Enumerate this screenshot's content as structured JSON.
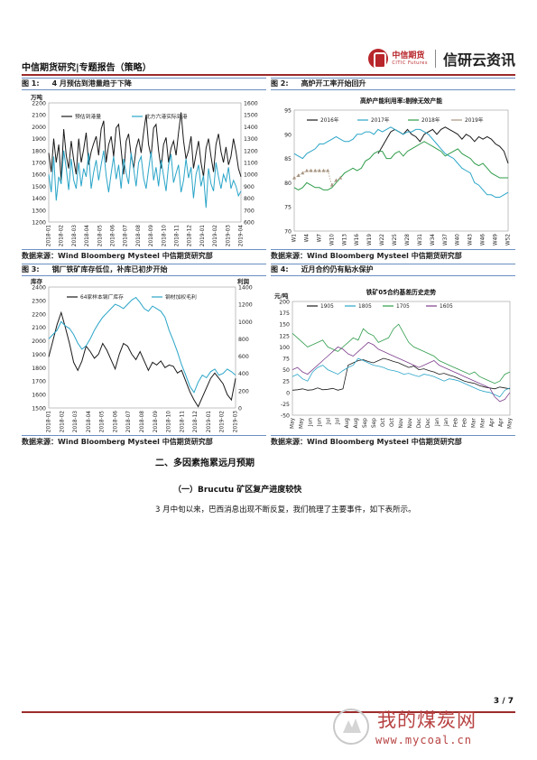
{
  "header": {
    "title": "中信期货研究|专题报告（策略）",
    "logo_cn": "中信期货",
    "logo_en": "CITIC Futures",
    "brand": "信研云资讯"
  },
  "figures": [
    {
      "num": "图 1:",
      "title": "4 月预估到港量趋于下降",
      "source": "数据来源：Wind Bloomberg Mysteel 中信期货研究部",
      "chart_data": {
        "type": "line",
        "ylabel_left": "万吨",
        "ylim_left": [
          1200,
          2200
        ],
        "yticks_left": [
          "2200",
          "2100",
          "2000",
          "1900",
          "1800",
          "1700",
          "1600",
          "1500",
          "1400",
          "1300",
          "1200"
        ],
        "ylim_right": [
          600,
          1600
        ],
        "yticks_right": [
          "1600",
          "1500",
          "1400",
          "1300",
          "1200",
          "1100",
          "1000",
          "900",
          "800",
          "700",
          "600"
        ],
        "xticks": [
          "2018-01",
          "2018-02",
          "2018-03",
          "2018-04",
          "2018-05",
          "2018-06",
          "2018-07",
          "2018-08",
          "2018-09",
          "2018-10",
          "2018-11",
          "2018-12",
          "2019-01",
          "2019-02",
          "2019-03",
          "2019-04"
        ],
        "series": [
          {
            "name": "预估到港量",
            "axis": "left",
            "color": "#1a1a1a",
            "values": [
              1780,
              1620,
              1900,
              1700,
              1850,
              1550,
              1980,
              1760,
              1650,
              1880,
              1720,
              1600,
              1900,
              1700,
              1810,
              1950,
              1680,
              1790,
              1860,
              1920,
              1760,
              1980,
              2050,
              1700,
              1850,
              1920,
              1750,
              1990,
              2020,
              1810,
              1600,
              1880,
              1940,
              1760,
              1650,
              1820,
              1900,
              1780,
              1950,
              2100,
              1850,
              1750,
              1990,
              2020,
              1800,
              1650,
              1850,
              1910,
              1700,
              1820,
              1880,
              1760,
              1950,
              2120,
              1880,
              1730,
              1800,
              1920,
              1650,
              1770,
              1880,
              1700,
              1580,
              1820,
              1900,
              1750,
              1620,
              1850,
              1940,
              1790,
              1700,
              1830,
              1680,
              1750,
              1900,
              1790,
              1650,
              1580
            ]
          },
          {
            "name": "北方六港实际到港",
            "axis": "right",
            "color": "#2aa5c8",
            "values": [
              1000,
              850,
              1150,
              780,
              980,
              920,
              1200,
              1050,
              870,
              1130,
              950,
              880,
              1100,
              900,
              1050,
              980,
              1180,
              880,
              1020,
              1120,
              950,
              1080,
              1200,
              990,
              850,
              1010,
              1150,
              960,
              1080,
              880,
              1130,
              1010,
              920,
              1180,
              1050,
              900,
              1100,
              1150,
              970,
              880,
              1040,
              1190,
              950,
              1060,
              900,
              1120,
              990,
              860,
              1080,
              1170,
              930,
              1010,
              1080,
              850,
              950,
              1130,
              970,
              1060,
              800,
              1000,
              1080,
              900,
              990,
              720,
              1050,
              920,
              860,
              1100,
              980,
              880,
              1000,
              940,
              1060,
              880,
              950,
              900,
              820,
              860
            ]
          }
        ]
      }
    },
    {
      "num": "图 2:",
      "title": "高炉开工率开始回升",
      "source": "数据来源：Wind Bloomberg Mysteel 中信期货研究部",
      "chart_data": {
        "type": "line",
        "title": "高炉产能利用率:剔除无效产能",
        "ylim": [
          70,
          95
        ],
        "yticks": [
          "95",
          "90",
          "85",
          "80",
          "75",
          "70"
        ],
        "xticks": [
          "W1",
          "W4",
          "W7",
          "W10",
          "W13",
          "W16",
          "W19",
          "W22",
          "W25",
          "W28",
          "W31",
          "W34",
          "W37",
          "W40",
          "W43",
          "W46",
          "W49",
          "W52"
        ],
        "series": [
          {
            "name": "2016年",
            "color": "#1a1a1a",
            "values": [
              null,
              null,
              null,
              null,
              null,
              null,
              null,
              null,
              null,
              null,
              null,
              null,
              null,
              null,
              null,
              null,
              null,
              null,
              null,
              null,
              86,
              87.5,
              89,
              90.5,
              91,
              90.5,
              90,
              91,
              90,
              89.5,
              88.5,
              90,
              90.5,
              91,
              90,
              91,
              91.5,
              91,
              90.5,
              90,
              89,
              90,
              89.5,
              88.5,
              89.5,
              89,
              89.5,
              89,
              88,
              87.5,
              86.5,
              84
            ]
          },
          {
            "name": "2017年",
            "color": "#2aa5c8",
            "values": [
              86,
              85.5,
              85,
              86,
              86.5,
              87,
              88,
              88,
              88.5,
              89,
              89.5,
              89,
              88.5,
              88.5,
              89,
              90,
              90,
              90.5,
              90.5,
              90,
              91,
              90.5,
              91,
              91.5,
              91,
              90.5,
              90,
              90.5,
              90.5,
              91,
              91,
              90.5,
              90,
              89,
              88,
              87,
              86,
              85.5,
              85,
              84,
              83,
              82.5,
              82,
              80,
              79.5,
              78.5,
              77.5,
              77.5,
              77,
              77,
              77.5,
              78
            ]
          },
          {
            "name": "2018年",
            "color": "#2e9c4a",
            "values": [
              79,
              78.5,
              79,
              80,
              79.5,
              79,
              79,
              78.5,
              78.5,
              79,
              80,
              81,
              82,
              82.5,
              83,
              82.5,
              83,
              84.5,
              85,
              86,
              86.5,
              86.5,
              85,
              85,
              86,
              86.5,
              85.5,
              86.5,
              87,
              87.5,
              88,
              88.5,
              88,
              87.5,
              87,
              86.5,
              85.5,
              86,
              86.5,
              87,
              86,
              85.5,
              85,
              84,
              83.5,
              84,
              83,
              82,
              81.5,
              81,
              81,
              81
            ]
          },
          {
            "name": "2019年",
            "color": "#a89580",
            "values": [
              81,
              81.5,
              82,
              82.5,
              82.5,
              82.5,
              82.5,
              82.5,
              82.5,
              79.5,
              80.5,
              81,
              null,
              null,
              null,
              null,
              null,
              null,
              null,
              null,
              null,
              null,
              null,
              null,
              null,
              null,
              null,
              null,
              null,
              null,
              null,
              null,
              null,
              null,
              null,
              null,
              null,
              null,
              null,
              null,
              null,
              null,
              null,
              null,
              null,
              null,
              null,
              null,
              null,
              null,
              null,
              null
            ]
          }
        ]
      }
    },
    {
      "num": "图 3:",
      "title": "钢厂铁矿库存低位，补库已初步开始",
      "source": "数据来源：Wind Bloomberg Mysteel 中信期货研究部",
      "chart_data": {
        "type": "line",
        "ylabel_left": "库存",
        "ylabel_right": "利润",
        "ylim_left": [
          1500,
          2400
        ],
        "yticks_left": [
          "2400",
          "2300",
          "2200",
          "2100",
          "2000",
          "1900",
          "1800",
          "1700",
          "1600",
          "1500"
        ],
        "ylim_right": [
          0,
          1400
        ],
        "yticks_right": [
          "1400",
          "1200",
          "1000",
          "800",
          "600",
          "400",
          "200",
          "0"
        ],
        "xticks": [
          "2018-01",
          "2018-02",
          "2018-03",
          "2018-04",
          "2018-05",
          "2018-06",
          "2018-07",
          "2018-08",
          "2018-09",
          "2018-10",
          "2018-11",
          "2018-12",
          "2019-01",
          "2019-02",
          "2019-03"
        ],
        "series": [
          {
            "name": "64家样本钢厂库存",
            "axis": "left",
            "color": "#1a1a1a",
            "values": [
              1880,
              2000,
              2120,
              2210,
              2100,
              1980,
              1840,
              1780,
              1850,
              1960,
              1920,
              1870,
              1900,
              1980,
              1930,
              1860,
              1790,
              1900,
              1980,
              1960,
              1900,
              1860,
              1920,
              1850,
              1780,
              1840,
              1820,
              1850,
              1800,
              1820,
              1810,
              1760,
              1780,
              1700,
              1620,
              1560,
              1510,
              1580,
              1650,
              1720,
              1760,
              1720,
              1680,
              1600,
              1560,
              1720
            ]
          },
          {
            "name": "钢材加权毛利",
            "axis": "right",
            "color": "#2aa5c8",
            "values": [
              800,
              850,
              900,
              1000,
              950,
              920,
              850,
              750,
              680,
              720,
              800,
              900,
              980,
              1050,
              1100,
              1150,
              1200,
              1180,
              1150,
              1200,
              1250,
              1280,
              1220,
              1150,
              1120,
              1180,
              1150,
              1120,
              1050,
              900,
              780,
              650,
              500,
              380,
              250,
              180,
              300,
              380,
              350,
              420,
              450,
              380,
              400,
              450,
              420,
              380
            ]
          }
        ]
      }
    },
    {
      "num": "图 4:",
      "title": "近月合约仍有贴水保护",
      "source": "数据来源：Wind Bloomberg Mysteel 中信期货研究部",
      "chart_data": {
        "type": "line",
        "title": "铁矿05合约基差历史走势",
        "ylabel": "元/吨",
        "ylim": [
          -50,
          200
        ],
        "yticks": [
          "200",
          "175",
          "150",
          "125",
          "100",
          "75",
          "50",
          "25",
          "0",
          "-25",
          "-50"
        ],
        "xticks": [
          "May",
          "May",
          "Jun",
          "Jun",
          "Jul",
          "Jul",
          "Aug",
          "Aug",
          "Sep",
          "Sep",
          "Oct",
          "Oct",
          "Nov",
          "Nov",
          "Dec",
          "Dec",
          "Jan",
          "Jan",
          "Feb",
          "Feb",
          "Mar",
          "Mar",
          "Apr",
          "Apr",
          "May"
        ],
        "series": [
          {
            "name": "1905",
            "color": "#1a1a1a",
            "values": [
              5,
              6,
              8,
              5,
              6,
              10,
              6,
              7,
              9,
              5,
              8,
              60,
              65,
              70,
              72,
              68,
              65,
              70,
              75,
              72,
              68,
              65,
              60,
              55,
              58,
              50,
              52,
              48,
              45,
              40,
              42,
              38,
              35,
              30,
              25,
              22,
              20,
              15,
              12,
              10,
              8,
              12,
              10,
              8
            ]
          },
          {
            "name": "1805",
            "color": "#2aa5c8",
            "values": [
              35,
              40,
              30,
              25,
              45,
              55,
              60,
              50,
              45,
              40,
              48,
              55,
              60,
              75,
              70,
              65,
              60,
              58,
              55,
              50,
              48,
              45,
              40,
              42,
              38,
              35,
              40,
              38,
              35,
              30,
              25,
              30,
              28,
              25,
              20,
              15,
              10,
              5,
              2,
              0,
              -5,
              -10,
              5,
              10
            ]
          },
          {
            "name": "1705",
            "color": "#2e9c4a",
            "values": [
              130,
              120,
              110,
              100,
              105,
              110,
              115,
              100,
              95,
              90,
              100,
              110,
              120,
              115,
              140,
              130,
              125,
              110,
              115,
              120,
              140,
              150,
              130,
              110,
              100,
              95,
              90,
              85,
              80,
              70,
              65,
              60,
              55,
              50,
              45,
              40,
              45,
              35,
              30,
              25,
              20,
              25,
              40,
              45
            ]
          },
          {
            "name": "1605",
            "color": "#7d3f8c",
            "values": [
              50,
              55,
              45,
              40,
              50,
              60,
              70,
              80,
              90,
              100,
              95,
              85,
              80,
              90,
              100,
              110,
              105,
              95,
              90,
              85,
              80,
              75,
              70,
              65,
              60,
              55,
              60,
              65,
              70,
              60,
              55,
              50,
              45,
              40,
              35,
              30,
              25,
              20,
              15,
              10,
              -10,
              -20,
              -15,
              0
            ]
          }
        ]
      }
    }
  ],
  "section_title": "二、多因素拖累远月预期",
  "sub_title": "（一）Brucutu 矿区复产进度较快",
  "para": "3 月中旬以来，巴西消息出现不断反复，我们梳理了主要事件，如下表所示。",
  "page": "3 / 7",
  "watermark": {
    "text": "我的煤炭网",
    "url": "www.mycoal.cn"
  },
  "colors": {
    "accent": "#9b2b2b",
    "frame": "#6b8fc2",
    "watermark": "#b84242"
  }
}
